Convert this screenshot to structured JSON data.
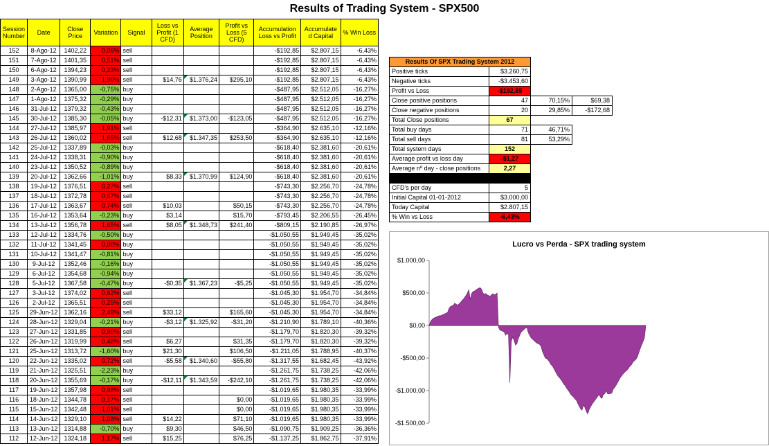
{
  "page": {
    "title": "Results of Trading System -  SPX500"
  },
  "table": {
    "headers": [
      "Session Number",
      "Date",
      "Close Price",
      "Variation",
      "Signal",
      "Loss vs Profit (1 CFD)",
      "Average Position",
      "Profit vs Loss (5 CFD)",
      "Accumulation Loss vs Profit",
      "Accumulate d Capital",
      "% Win Loss"
    ],
    "rows": [
      [
        "152",
        "8-Ago-12",
        "1402,22",
        "0,06%",
        "sell",
        "",
        "",
        "",
        "-$192,85",
        "$2.807,15",
        "-6,43%"
      ],
      [
        "151",
        "7-Ago-12",
        "1401,35",
        "0,51%",
        "sell",
        "",
        "",
        "",
        "-$192,85",
        "$2.807,15",
        "-6,43%"
      ],
      [
        "150",
        "6-Ago-12",
        "1394,23",
        "0,23%",
        "sell",
        "",
        "",
        "",
        "-$192,85",
        "$2.807,15",
        "-6,43%"
      ],
      [
        "149",
        "3-Ago-12",
        "1390,99",
        "1,90%",
        "sell",
        "$14,76",
        "$1.376,24",
        "$295,10",
        "-$192,85",
        "$2.807,15",
        "-6,43%"
      ],
      [
        "148",
        "2-Ago-12",
        "1365,00",
        "-0,75%",
        "buy",
        "",
        "",
        "",
        "-$487,95",
        "$2.512,05",
        "-16,27%"
      ],
      [
        "147",
        "1-Ago-12",
        "1375,32",
        "-0,29%",
        "buy",
        "",
        "",
        "",
        "-$487,95",
        "$2.512,05",
        "-16,27%"
      ],
      [
        "146",
        "31-Jul-12",
        "1379,32",
        "-0,43%",
        "buy",
        "",
        "",
        "",
        "-$487,95",
        "$2.512,05",
        "-16,27%"
      ],
      [
        "145",
        "30-Jul-12",
        "1385,30",
        "-0,05%",
        "buy",
        "-$12,31",
        "$1.373,00",
        "-$123,05",
        "-$487,95",
        "$2.512,05",
        "-16,27%"
      ],
      [
        "144",
        "27-Jul-12",
        "1385,97",
        "1,91%",
        "sell",
        "",
        "",
        "",
        "-$364,90",
        "$2.635,10",
        "-12,16%"
      ],
      [
        "143",
        "26-Jul-12",
        "1360,02",
        "1,65%",
        "sell",
        "$12,68",
        "$1.347,35",
        "$253,50",
        "-$364,90",
        "$2.635,10",
        "-12,16%"
      ],
      [
        "142",
        "25-Jul-12",
        "1337,89",
        "-0,03%",
        "buy",
        "",
        "",
        "",
        "-$618,40",
        "$2.381,60",
        "-20,61%"
      ],
      [
        "141",
        "24-Jul-12",
        "1338,31",
        "-0,90%",
        "buy",
        "",
        "",
        "",
        "-$618,40",
        "$2.381,60",
        "-20,61%"
      ],
      [
        "140",
        "23-Jul-12",
        "1350,52",
        "-0,89%",
        "buy",
        "",
        "",
        "",
        "-$618,40",
        "$2.381,60",
        "-20,61%"
      ],
      [
        "139",
        "20-Jul-12",
        "1362,66",
        "-1,01%",
        "buy",
        "$8,33",
        "$1.370,99",
        "$124,90",
        "-$618,40",
        "$2.381,60",
        "-20,61%"
      ],
      [
        "138",
        "19-Jul-12",
        "1376,51",
        "0,27%",
        "sell",
        "",
        "",
        "",
        "-$743,30",
        "$2.256,70",
        "-24,78%"
      ],
      [
        "137",
        "18-Jul-12",
        "1372,78",
        "0,67%",
        "sell",
        "",
        "",
        "",
        "-$743,30",
        "$2.256,70",
        "-24,78%"
      ],
      [
        "136",
        "17-Jul-12",
        "1363,67",
        "0,74%",
        "sell",
        "$10,03",
        "",
        "$50,15",
        "-$743,30",
        "$2.256,70",
        "-24,78%"
      ],
      [
        "135",
        "16-Jul-12",
        "1353,64",
        "-0,23%",
        "buy",
        "$3,14",
        "",
        "$15,70",
        "-$793,45",
        "$2.206,55",
        "-26,45%"
      ],
      [
        "134",
        "13-Jul-12",
        "1356,78",
        "1,65%",
        "sell",
        "$8,05",
        "$1.348,73",
        "$241,40",
        "-$809,15",
        "$2.190,85",
        "-26,97%"
      ],
      [
        "133",
        "12-Jul-12",
        "1334,76",
        "-0,50%",
        "buy",
        "",
        "",
        "",
        "-$1.050,55",
        "$1.949,45",
        "-35,02%"
      ],
      [
        "132",
        "11-Jul-12",
        "1341,45",
        "0,00%",
        "buy",
        "",
        "",
        "",
        "-$1.050,55",
        "$1.949,45",
        "-35,02%"
      ],
      [
        "131",
        "10-Jul-12",
        "1341,47",
        "-0,81%",
        "buy",
        "",
        "",
        "",
        "-$1.050,55",
        "$1.949,45",
        "-35,02%"
      ],
      [
        "130",
        "9-Jul-12",
        "1352,46",
        "-0,16%",
        "buy",
        "",
        "",
        "",
        "-$1.050,55",
        "$1.949,45",
        "-35,02%"
      ],
      [
        "129",
        "6-Jul-12",
        "1354,68",
        "-0,94%",
        "buy",
        "",
        "",
        "",
        "-$1.050,55",
        "$1.949,45",
        "-35,02%"
      ],
      [
        "128",
        "5-Jul-12",
        "1367,58",
        "-0,47%",
        "buy",
        "-$0,35",
        "$1.367,23",
        "-$5,25",
        "-$1.050,55",
        "$1.949,45",
        "-35,02%"
      ],
      [
        "127",
        "3-Jul-12",
        "1374,02",
        "0,62%",
        "sell",
        "",
        "",
        "",
        "-$1.045,30",
        "$1.954,70",
        "-34,84%"
      ],
      [
        "126",
        "2-Jul-12",
        "1365,51",
        "0,25%",
        "sell",
        "",
        "",
        "",
        "-$1.045,30",
        "$1.954,70",
        "-34,84%"
      ],
      [
        "125",
        "29-Jun-12",
        "1362,16",
        "2,49%",
        "sell",
        "$33,12",
        "",
        "$165,60",
        "-$1.045,30",
        "$1.954,70",
        "-34,84%"
      ],
      [
        "124",
        "28-Jun-12",
        "1329,04",
        "-0,21%",
        "buy",
        "-$3,12",
        "$1.325,92",
        "-$31,20",
        "-$1.210,90",
        "$1.789,10",
        "-40,36%"
      ],
      [
        "123",
        "27-Jun-12",
        "1331,85",
        "0,90%",
        "sell",
        "",
        "",
        "",
        "-$1.179,70",
        "$1.820,30",
        "-39,32%"
      ],
      [
        "122",
        "26-Jun-12",
        "1319,99",
        "0,48%",
        "sell",
        "$6,27",
        "",
        "$31,35",
        "-$1.179,70",
        "$1.820,30",
        "-39,32%"
      ],
      [
        "121",
        "25-Jun-12",
        "1313,72",
        "-1,60%",
        "buy",
        "$21,30",
        "",
        "$106,50",
        "-$1.211,05",
        "$1.788,95",
        "-40,37%"
      ],
      [
        "120",
        "22-Jun-12",
        "1335,02",
        "0,72%",
        "sell",
        "-$5,58",
        "$1.340,60",
        "-$55,80",
        "-$1.317,55",
        "$1.682,45",
        "-43,92%"
      ],
      [
        "119",
        "21-Jun-12",
        "1325,51",
        "-2,23%",
        "buy",
        "",
        "",
        "",
        "-$1.261,75",
        "$1.738,25",
        "-42,06%"
      ],
      [
        "118",
        "20-Jun-12",
        "1355,69",
        "-0,17%",
        "buy",
        "-$12,11",
        "$1.343,59",
        "-$242,10",
        "-$1.261,75",
        "$1.738,25",
        "-42,06%"
      ],
      [
        "117",
        "19-Jun-12",
        "1357,98",
        "0,98%",
        "sell",
        "",
        "",
        "",
        "-$1.019,65",
        "$1.980,35",
        "-33,99%"
      ],
      [
        "116",
        "18-Jun-12",
        "1344,78",
        "0,17%",
        "sell",
        "",
        "",
        "$0,00",
        "-$1.019,65",
        "$1.980,35",
        "-33,99%"
      ],
      [
        "115",
        "15-Jun-12",
        "1342,48",
        "1,01%",
        "sell",
        "",
        "",
        "$0,00",
        "-$1.019,65",
        "$1.980,35",
        "-33,99%"
      ],
      [
        "114",
        "14-Jun-12",
        "1329,10",
        "1,08%",
        "sell",
        "$14,22",
        "",
        "$71,10",
        "-$1.019,65",
        "$1.980,35",
        "-33,99%"
      ],
      [
        "113",
        "13-Jun-12",
        "1314,88",
        "-0,70%",
        "buy",
        "$9,30",
        "",
        "$46,50",
        "-$1.090,75",
        "$1.909,25",
        "-36,36%"
      ],
      [
        "112",
        "12-Jun-12",
        "1324,18",
        "1,17%",
        "sell",
        "$15,25",
        "",
        "$76,25",
        "-$1.137,25",
        "$1.862,75",
        "-37,91%"
      ]
    ]
  },
  "summary": {
    "title": "Results Of SPX Trading System 2012",
    "rows": [
      [
        "Positive ticks",
        "$3.260,75",
        "",
        ""
      ],
      [
        "Negative ticks",
        "-$3.453,60",
        "",
        ""
      ],
      [
        "Profit vs Loss",
        "-$192,85",
        "",
        ""
      ],
      [
        "Close positive positions",
        "47",
        "70,15%",
        "$69,38"
      ],
      [
        "Close negative positions",
        "20",
        "29,85%",
        "-$172,68"
      ],
      [
        "Total Close positions",
        "67",
        "",
        ""
      ],
      [
        "Total buy days",
        "71",
        "46,71%",
        ""
      ],
      [
        "Total sell days",
        "81",
        "53,29%",
        ""
      ],
      [
        "Total system days",
        "152",
        "",
        ""
      ],
      [
        "Average profit vs loss day",
        "-$1,27",
        "",
        ""
      ],
      [
        "Average nº day - close positions",
        "2,27",
        "",
        ""
      ],
      [
        "",
        "",
        "",
        ""
      ],
      [
        "CFD's per day",
        "5",
        "",
        ""
      ],
      [
        "Initial Capital 01-01-2012",
        "$3.000,00",
        "",
        ""
      ],
      [
        "Today Capital",
        "$2.807,15",
        "",
        ""
      ],
      [
        "% Win vs Loss",
        "-6,43%",
        "",
        ""
      ]
    ]
  },
  "chart_data": {
    "type": "area",
    "title": "Lucro vs Perda - SPX trading system",
    "ylim": [
      -1500,
      1000
    ],
    "y_ticks": [
      "$1.000,00",
      "$500,00",
      "$0,00",
      "-$500,00",
      "-$1.000,00",
      "-$1.500,00"
    ],
    "y_tick_values": [
      1000,
      500,
      0,
      -500,
      -1000,
      -1500
    ],
    "color": "#9b3a9b",
    "series": [
      {
        "values": [
          0,
          60,
          90,
          110,
          120,
          130,
          140,
          150,
          150,
          160,
          170,
          180,
          190,
          200,
          260,
          290,
          300,
          310,
          340,
          330,
          310,
          330,
          350,
          380,
          400,
          430,
          460,
          500,
          550,
          400,
          490,
          520,
          530,
          545,
          560,
          575,
          580,
          560,
          500,
          480,
          490,
          470,
          460,
          450,
          470,
          490,
          470,
          480,
          500,
          -30,
          -70,
          -80,
          -90,
          -100,
          -150,
          -120,
          -140,
          -880,
          -240,
          -180,
          -230,
          -300,
          -280,
          -200,
          -150,
          -100,
          -80,
          -60,
          -40,
          -30,
          -110,
          -150,
          -190,
          -210,
          -230,
          -250,
          -270,
          -280,
          -290,
          -320,
          -400,
          -450,
          -500,
          -510,
          -530,
          -560,
          -600,
          -620,
          -660,
          -700,
          -740,
          -780,
          -800,
          -830,
          -860,
          -900,
          -920,
          -960,
          -990,
          -1020,
          -1060,
          -1080,
          -1100,
          -1130,
          -1150,
          -1200,
          -1240,
          -1280,
          -1300,
          -1220,
          -1260,
          -1320,
          -1360,
          -1290,
          -1250,
          -1210,
          -1180,
          -1150,
          -1120,
          -1090,
          -1060,
          -1100,
          -1120,
          -1060,
          -1050,
          -1000,
          -1050,
          -1050,
          -1045,
          -1040,
          -980,
          -950,
          -920,
          -880,
          -840,
          -800,
          -770,
          -743,
          -720,
          -700,
          -680,
          -650,
          -618,
          -600,
          -560,
          -540,
          -520,
          -487,
          -420,
          -360,
          -300,
          -250,
          -193,
          0
        ]
      }
    ]
  }
}
